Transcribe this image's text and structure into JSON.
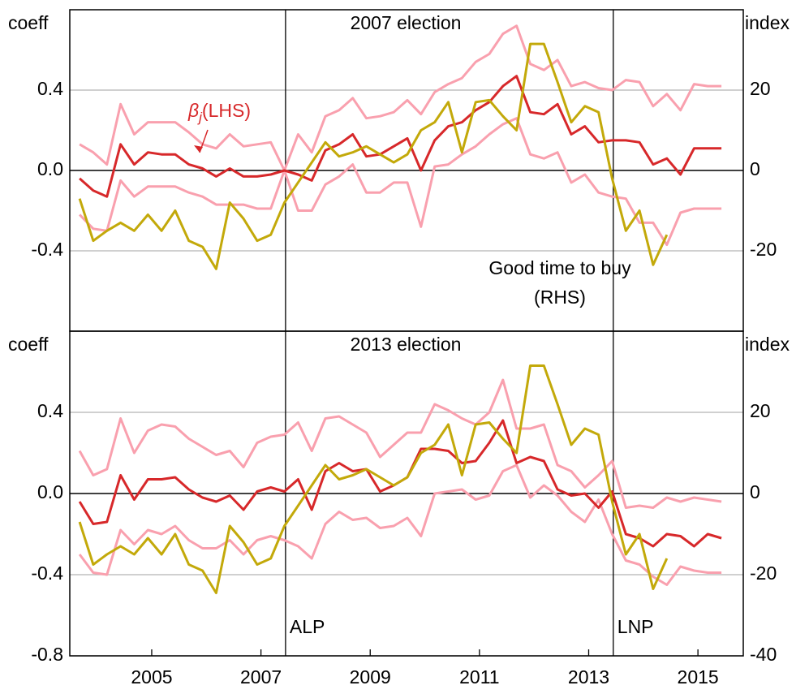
{
  "chart_data": [
    {
      "type": "line",
      "title": "2007 election",
      "ylabel": "coeff",
      "y2label": "index",
      "x": [
        2003.68,
        2003.93,
        2004.18,
        2004.43,
        2004.68,
        2004.93,
        2005.18,
        2005.43,
        2005.68,
        2005.93,
        2006.18,
        2006.43,
        2006.68,
        2006.93,
        2007.18,
        2007.43,
        2007.68,
        2007.93,
        2008.18,
        2008.43,
        2008.68,
        2008.93,
        2009.18,
        2009.43,
        2009.68,
        2009.93,
        2010.18,
        2010.43,
        2010.68,
        2010.93,
        2011.18,
        2011.43,
        2011.68,
        2011.93,
        2012.18,
        2012.43,
        2012.68,
        2012.93,
        2013.18,
        2013.43,
        2013.68,
        2013.93,
        2014.18,
        2014.43,
        2014.68,
        2014.93,
        2015.18,
        2015.43
      ],
      "series": [
        {
          "color": "#f9a0ae",
          "values": [
            0.13,
            0.09,
            0.03,
            0.33,
            0.18,
            0.24,
            0.24,
            0.24,
            0.19,
            0.13,
            0.11,
            0.18,
            0.12,
            0.13,
            0.14,
            0.0,
            0.18,
            0.09,
            0.27,
            0.3,
            0.36,
            0.26,
            0.27,
            0.29,
            0.35,
            0.28,
            0.39,
            0.43,
            0.46,
            0.54,
            0.58,
            0.68,
            0.72,
            0.53,
            0.5,
            0.55,
            0.42,
            0.44,
            0.41,
            0.4,
            0.45,
            0.44,
            0.32,
            0.38,
            0.3,
            0.43,
            0.42,
            0.42
          ]
        },
        {
          "color": "#f9a0ae",
          "values": [
            -0.22,
            -0.29,
            -0.3,
            -0.05,
            -0.13,
            -0.08,
            -0.08,
            -0.08,
            -0.11,
            -0.13,
            -0.17,
            -0.17,
            -0.17,
            -0.19,
            -0.19,
            0.0,
            -0.2,
            -0.2,
            -0.07,
            -0.03,
            0.03,
            -0.11,
            -0.11,
            -0.06,
            -0.06,
            -0.28,
            0.02,
            0.03,
            0.08,
            0.12,
            0.18,
            0.23,
            0.26,
            0.08,
            0.06,
            0.09,
            -0.06,
            -0.02,
            -0.11,
            -0.13,
            -0.14,
            -0.26,
            -0.26,
            -0.37,
            -0.21,
            -0.19,
            -0.19,
            -0.19
          ]
        },
        {
          "color": "#d7282a",
          "values": [
            -0.04,
            -0.1,
            -0.13,
            0.13,
            0.03,
            0.09,
            0.08,
            0.08,
            0.03,
            0.01,
            -0.03,
            0.01,
            -0.03,
            -0.03,
            -0.02,
            0.0,
            -0.02,
            -0.05,
            0.1,
            0.13,
            0.18,
            0.07,
            0.08,
            0.12,
            0.16,
            0.0,
            0.15,
            0.22,
            0.24,
            0.3,
            0.34,
            0.42,
            0.47,
            0.29,
            0.28,
            0.33,
            0.18,
            0.22,
            0.14,
            0.15,
            0.15,
            0.14,
            0.03,
            0.06,
            -0.02,
            0.11,
            0.11,
            0.11
          ]
        },
        {
          "color": "#c3a90a",
          "axis": "y2",
          "values": [
            -7,
            -17.5,
            -15,
            -13,
            -15,
            -11,
            -15,
            -10,
            -17.5,
            -19,
            -24.5,
            -8,
            -12,
            -17.5,
            -16,
            -8,
            -3,
            2,
            7,
            3.5,
            4.5,
            6,
            4,
            2,
            4,
            10,
            12,
            17,
            4.5,
            17,
            17.5,
            13.5,
            10,
            31.5,
            31.5,
            22,
            12,
            16,
            14.5,
            -2,
            -15,
            -10,
            -23.5,
            -16,
            null,
            null,
            null,
            null
          ]
        }
      ],
      "xlim": [
        2003.5,
        2015.83
      ],
      "ylim": [
        -0.8,
        0.8
      ],
      "y2lim": [
        -40,
        40
      ],
      "yticks": [
        -0.4,
        {
          "value": 0,
          "label": "0.0"
        },
        0.4
      ],
      "y2ticks": [
        -20,
        0,
        20
      ],
      "grid": true,
      "vlines": [
        2007.45,
        2013.45
      ],
      "annotations": [
        {
          "symbol": "β",
          "subscript": "j",
          "text": "(LHS)",
          "color": "#d7282a"
        },
        {
          "lines": [
            "Good time to buy",
            "(RHS)"
          ],
          "color": "#c3a90a"
        }
      ]
    },
    {
      "type": "line",
      "title": "2013 election",
      "ylabel": "coeff",
      "y2label": "index",
      "x": [
        2003.68,
        2003.93,
        2004.18,
        2004.43,
        2004.68,
        2004.93,
        2005.18,
        2005.43,
        2005.68,
        2005.93,
        2006.18,
        2006.43,
        2006.68,
        2006.93,
        2007.18,
        2007.43,
        2007.68,
        2007.93,
        2008.18,
        2008.43,
        2008.68,
        2008.93,
        2009.18,
        2009.43,
        2009.68,
        2009.93,
        2010.18,
        2010.43,
        2010.68,
        2010.93,
        2011.18,
        2011.43,
        2011.68,
        2011.93,
        2012.18,
        2012.43,
        2012.68,
        2012.93,
        2013.18,
        2013.43,
        2013.68,
        2013.93,
        2014.18,
        2014.43,
        2014.68,
        2014.93,
        2015.18,
        2015.43
      ],
      "series": [
        {
          "color": "#f9a0ae",
          "values": [
            0.21,
            0.09,
            0.12,
            0.37,
            0.2,
            0.31,
            0.34,
            0.33,
            0.27,
            0.23,
            0.19,
            0.21,
            0.13,
            0.25,
            0.28,
            0.29,
            0.35,
            0.21,
            0.37,
            0.38,
            0.34,
            0.3,
            0.18,
            0.24,
            0.3,
            0.3,
            0.44,
            0.41,
            0.37,
            0.34,
            0.4,
            0.56,
            0.32,
            0.32,
            0.34,
            0.14,
            0.11,
            0.03,
            0.09,
            0.16,
            -0.07,
            -0.06,
            -0.07,
            -0.02,
            -0.04,
            -0.02,
            -0.03,
            -0.04
          ]
        },
        {
          "color": "#f9a0ae",
          "values": [
            -0.3,
            -0.39,
            -0.4,
            -0.18,
            -0.25,
            -0.18,
            -0.2,
            -0.16,
            -0.23,
            -0.27,
            -0.27,
            -0.23,
            -0.3,
            -0.23,
            -0.21,
            -0.23,
            -0.26,
            -0.32,
            -0.15,
            -0.09,
            -0.13,
            -0.12,
            -0.17,
            -0.16,
            -0.12,
            -0.21,
            0.0,
            0.01,
            0.02,
            -0.03,
            -0.01,
            0.11,
            0.14,
            -0.02,
            0.04,
            -0.01,
            -0.09,
            -0.14,
            -0.03,
            -0.2,
            -0.33,
            -0.35,
            -0.41,
            -0.45,
            -0.36,
            -0.38,
            -0.39,
            -0.39
          ]
        },
        {
          "color": "#d7282a",
          "values": [
            -0.04,
            -0.15,
            -0.14,
            0.09,
            -0.03,
            0.07,
            0.07,
            0.08,
            0.02,
            -0.02,
            -0.04,
            -0.01,
            -0.08,
            0.01,
            0.03,
            0.01,
            0.07,
            -0.08,
            0.11,
            0.15,
            0.11,
            0.12,
            0.01,
            0.04,
            0.08,
            0.22,
            0.22,
            0.21,
            0.15,
            0.16,
            0.25,
            0.36,
            0.15,
            0.18,
            0.16,
            0.02,
            -0.01,
            0.0,
            -0.07,
            0.01,
            -0.2,
            -0.22,
            -0.26,
            -0.2,
            -0.21,
            -0.26,
            -0.2,
            -0.22
          ]
        },
        {
          "color": "#c3a90a",
          "axis": "y2",
          "values": [
            -7,
            -17.5,
            -15,
            -13,
            -15,
            -11,
            -15,
            -10,
            -17.5,
            -19,
            -24.5,
            -8,
            -12,
            -17.5,
            -16,
            -8,
            -3,
            2,
            7,
            3.5,
            4.5,
            6,
            4,
            2,
            4,
            10,
            12,
            17,
            4.5,
            17,
            17.5,
            13.5,
            10,
            31.5,
            31.5,
            22,
            12,
            16,
            14.5,
            -2,
            -15,
            -10,
            -23.5,
            -16,
            null,
            null,
            null,
            null
          ]
        }
      ],
      "xlim": [
        2003.5,
        2015.83
      ],
      "ylim": [
        -0.8,
        0.8
      ],
      "y2lim": [
        -40,
        40
      ],
      "xticks": [
        2005,
        2007,
        2009,
        2011,
        2013,
        2015
      ],
      "yticks": [
        -0.8,
        -0.4,
        {
          "value": 0,
          "label": "0.0"
        },
        0.4
      ],
      "y2ticks": [
        -40,
        -20,
        0,
        20
      ],
      "grid": true,
      "vlines": [
        2007.45,
        2013.45
      ],
      "vline_labels": [
        "ALP",
        "LNP"
      ]
    }
  ]
}
